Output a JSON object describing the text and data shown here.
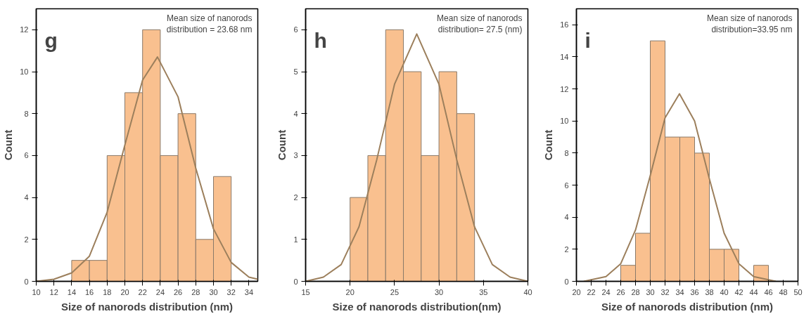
{
  "chart_data": [
    {
      "type": "histogram",
      "xlabel": "Size of nanorods distribution (nm)",
      "ylabel": "Count",
      "bins": [
        14,
        16,
        18,
        20,
        22,
        24,
        26,
        28,
        30,
        32
      ],
      "values": [
        1,
        1,
        6,
        9,
        12,
        6,
        8,
        2,
        5
      ],
      "color": "#f9c08f",
      "xlim": [
        10,
        35
      ],
      "xticks": [
        10,
        12,
        14,
        16,
        18,
        20,
        22,
        24,
        26,
        28,
        30,
        32,
        34
      ],
      "ylim": [
        0,
        13
      ],
      "yticks": [
        0,
        2,
        4,
        6,
        8,
        10,
        12
      ],
      "grid": false,
      "annotations": [
        "g",
        "Mean size of nanorods\ndistribution = 23.68 nm"
      ],
      "series": [
        {
          "type": "line",
          "color": "#9c7f5c",
          "x": [
            10,
            12,
            14,
            16,
            18,
            20,
            22,
            23.68,
            26,
            28,
            30,
            32,
            34,
            35
          ],
          "values": [
            0.0,
            0.1,
            0.4,
            1.2,
            3.3,
            6.5,
            9.6,
            10.7,
            8.8,
            5.4,
            2.5,
            0.9,
            0.2,
            0.1
          ]
        }
      ]
    },
    {
      "type": "histogram",
      "xlabel": "Size of nanorods distribution(nm)",
      "ylabel": "Count",
      "bins": [
        20,
        22,
        24,
        26,
        28,
        30,
        32,
        34
      ],
      "values": [
        2,
        3,
        6,
        5,
        3,
        5,
        4
      ],
      "color": "#f9c08f",
      "xlim": [
        15,
        40
      ],
      "xticks": [
        15,
        20,
        25,
        30,
        35,
        40
      ],
      "ylim": [
        0,
        6.5
      ],
      "yticks": [
        0,
        1,
        2,
        3,
        4,
        5,
        6
      ],
      "grid": false,
      "annotations": [
        "h",
        "Mean size of nanorods\ndistribution= 27.5 (nm)"
      ],
      "series": [
        {
          "type": "line",
          "color": "#9c7f5c",
          "x": [
            15,
            17,
            19,
            21,
            23,
            25,
            27.5,
            30,
            32,
            34,
            36,
            38,
            40
          ],
          "values": [
            0.0,
            0.1,
            0.4,
            1.3,
            2.9,
            4.7,
            5.9,
            4.7,
            2.9,
            1.3,
            0.4,
            0.1,
            0.0
          ]
        }
      ]
    },
    {
      "type": "histogram",
      "xlabel": "Size of nanorods distribution (nm)",
      "ylabel": "Count",
      "bins": [
        26,
        28,
        30,
        32,
        34,
        36,
        38,
        40,
        42,
        44,
        46
      ],
      "values": [
        1,
        3,
        15,
        9,
        9,
        8,
        2,
        2,
        0,
        1
      ],
      "color": "#f9c08f",
      "xlim": [
        20,
        50
      ],
      "xticks": [
        20,
        22,
        24,
        26,
        28,
        30,
        32,
        34,
        36,
        38,
        40,
        42,
        44,
        46,
        48,
        50
      ],
      "ylim": [
        0,
        17
      ],
      "yticks": [
        0,
        2,
        4,
        6,
        8,
        10,
        12,
        14,
        16
      ],
      "grid": false,
      "annotations": [
        "i",
        "Mean size of nanorods\ndistribution=33.95 nm"
      ],
      "series": [
        {
          "type": "line",
          "color": "#9c7f5c",
          "x": [
            21,
            22,
            24,
            26,
            28,
            30,
            32,
            33.95,
            36,
            38,
            40,
            42,
            44,
            46,
            47
          ],
          "values": [
            0.0,
            0.1,
            0.3,
            1.1,
            3.2,
            6.6,
            10.2,
            11.7,
            10.0,
            6.4,
            3.0,
            1.1,
            0.3,
            0.1,
            0.0
          ]
        }
      ]
    }
  ]
}
